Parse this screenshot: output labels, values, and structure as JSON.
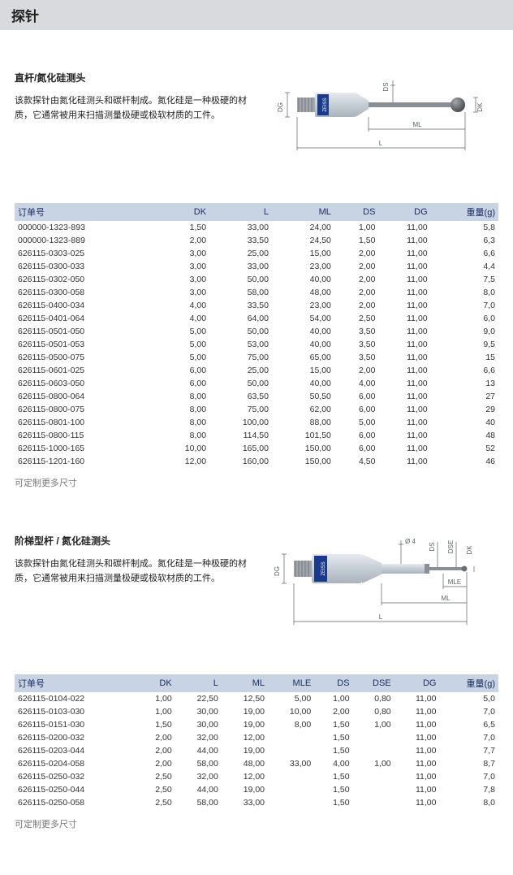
{
  "page_title": "探针",
  "section1": {
    "title": "直杆/氮化硅测头",
    "desc": "该款探针由氮化硅测头和碳杆制成。氮化硅是一种极硬的材质，它通常被用来扫描测量极硬或极软材质的工件。",
    "columns": [
      "订单号",
      "DK",
      "L",
      "ML",
      "DS",
      "DG",
      "重量(g)"
    ],
    "rows": [
      [
        "000000-1323-893",
        "1,50",
        "33,00",
        "24,00",
        "1,00",
        "11,00",
        "5,8"
      ],
      [
        "000000-1323-889",
        "2,00",
        "33,50",
        "24,50",
        "1,50",
        "11,00",
        "6,3"
      ],
      [
        "626115-0303-025",
        "3,00",
        "25,00",
        "15,00",
        "2,00",
        "11,00",
        "6,6"
      ],
      [
        "626115-0300-033",
        "3,00",
        "33,00",
        "23,00",
        "2,00",
        "11,00",
        "4,4"
      ],
      [
        "626115-0302-050",
        "3,00",
        "50,00",
        "40,00",
        "2,00",
        "11,00",
        "7,5"
      ],
      [
        "626115-0300-058",
        "3,00",
        "58,00",
        "48,00",
        "2,00",
        "11,00",
        "8,0"
      ],
      [
        "626115-0400-034",
        "4,00",
        "33,50",
        "23,00",
        "2,00",
        "11,00",
        "7,0"
      ],
      [
        "626115-0401-064",
        "4,00",
        "64,00",
        "54,00",
        "2,50",
        "11,00",
        "6,0"
      ],
      [
        "626115-0501-050",
        "5,00",
        "50,00",
        "40,00",
        "3,50",
        "11,00",
        "9,0"
      ],
      [
        "626115-0501-053",
        "5,00",
        "53,00",
        "40,00",
        "3,50",
        "11,00",
        "9,5"
      ],
      [
        "626115-0500-075",
        "5,00",
        "75,00",
        "65,00",
        "3,50",
        "11,00",
        "15"
      ],
      [
        "626115-0601-025",
        "6,00",
        "25,00",
        "15,00",
        "2,00",
        "11,00",
        "6,6"
      ],
      [
        "626115-0603-050",
        "6,00",
        "50,00",
        "40,00",
        "4,00",
        "11,00",
        "13"
      ],
      [
        "626115-0800-064",
        "8,00",
        "63,50",
        "50,50",
        "6,00",
        "11,00",
        "27"
      ],
      [
        "626115-0800-075",
        "8,00",
        "75,00",
        "62,00",
        "6,00",
        "11,00",
        "29"
      ],
      [
        "626115-0801-100",
        "8,00",
        "100,00",
        "88,00",
        "5,00",
        "11,00",
        "40"
      ],
      [
        "626115-0800-115",
        "8,00",
        "114,50",
        "101,50",
        "6,00",
        "11,00",
        "48"
      ],
      [
        "626115-1000-165",
        "10,00",
        "165,00",
        "150,00",
        "6,00",
        "11,00",
        "52"
      ],
      [
        "626115-1201-160",
        "12,00",
        "160,00",
        "150,00",
        "4,50",
        "11,00",
        "46"
      ]
    ],
    "footnote": "可定制更多尺寸",
    "diagram": {
      "colors": {
        "body": "#c5cdd5",
        "thread": "#a0a6ae",
        "stem": "#8a8f96",
        "ball": "#6b6e73",
        "line": "#5a5f66",
        "label": "#5a5f66",
        "logo": "#1a3a8a"
      },
      "labels": [
        "DG",
        "DS",
        "DK",
        "ML",
        "L"
      ]
    }
  },
  "section2": {
    "title": "阶梯型杆  /  氮化硅测头",
    "desc": "该款探针由氮化硅测头和碳杆制成。氮化硅是一种极硬的材质，它通常被用来扫描测量极硬或极软材质的工件。",
    "columns": [
      "订单号",
      "DK",
      "L",
      "ML",
      "MLE",
      "DS",
      "DSE",
      "DG",
      "重量(g)"
    ],
    "rows": [
      [
        "626115-0104-022",
        "1,00",
        "22,50",
        "12,50",
        "5,00",
        "1,00",
        "0,80",
        "11,00",
        "5,0"
      ],
      [
        "626115-0103-030",
        "1,00",
        "30,00",
        "19,00",
        "10,00",
        "2,00",
        "0,80",
        "11,00",
        "7,0"
      ],
      [
        "626115-0151-030",
        "1,50",
        "30,00",
        "19,00",
        "8,00",
        "1,50",
        "1,00",
        "11,00",
        "6,5"
      ],
      [
        "626115-0200-032",
        "2,00",
        "32,00",
        "12,00",
        "",
        "1,50",
        "",
        "11,00",
        "7,0"
      ],
      [
        "626115-0203-044",
        "2,00",
        "44,00",
        "19,00",
        "",
        "1,50",
        "",
        "11,00",
        "7,7"
      ],
      [
        "626115-0204-058",
        "2,00",
        "58,00",
        "48,00",
        "33,00",
        "4,00",
        "1,00",
        "11,00",
        "8,7"
      ],
      [
        "626115-0250-032",
        "2,50",
        "32,00",
        "12,00",
        "",
        "1,50",
        "",
        "11,00",
        "7,0"
      ],
      [
        "626115-0250-044",
        "2,50",
        "44,00",
        "19,00",
        "",
        "1,50",
        "",
        "11,00",
        "7,8"
      ],
      [
        "626115-0250-058",
        "2,50",
        "58,00",
        "33,00",
        "",
        "1,50",
        "",
        "11,00",
        "8,0"
      ]
    ],
    "footnote": "可定制更多尺寸",
    "diagram": {
      "colors": {
        "body": "#c5cdd5",
        "thread": "#a0a6ae",
        "stem": "#8a8f96",
        "ball": "#8a8f96",
        "line": "#5a5f66",
        "label": "#5a5f66",
        "logo": "#1a3a8a"
      },
      "labels": [
        "DG",
        "Ø 4",
        "DS",
        "DSE",
        "DK",
        "MLE",
        "ML",
        "L"
      ]
    }
  }
}
